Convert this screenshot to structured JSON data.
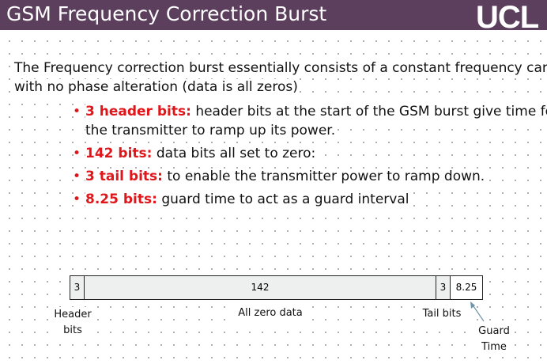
{
  "header": {
    "title": "GSM Frequency Correction Burst",
    "logo": "UCL"
  },
  "intro": [
    "The Frequency correction burst essentially consists of a constant frequency carrier",
    "with no phase alteration (data is all zeros)"
  ],
  "bullets": [
    {
      "label": "3 header bits:",
      "text": "header bits at the start of the GSM burst give time for",
      "text2": "the transmitter to ramp up its power."
    },
    {
      "label": "142 bits:",
      "text": "data bits all set to zero:"
    },
    {
      "label": "3 tail bits:",
      "text": "to enable the transmitter power to ramp down."
    },
    {
      "label": "8.25 bits:",
      "text": "guard time to act as a guard interval"
    }
  ],
  "burst": {
    "fields": [
      3,
      142,
      3,
      8.25
    ],
    "captions": [
      "Header bits",
      "All zero data",
      "Tail bits",
      "Guard Time"
    ]
  }
}
